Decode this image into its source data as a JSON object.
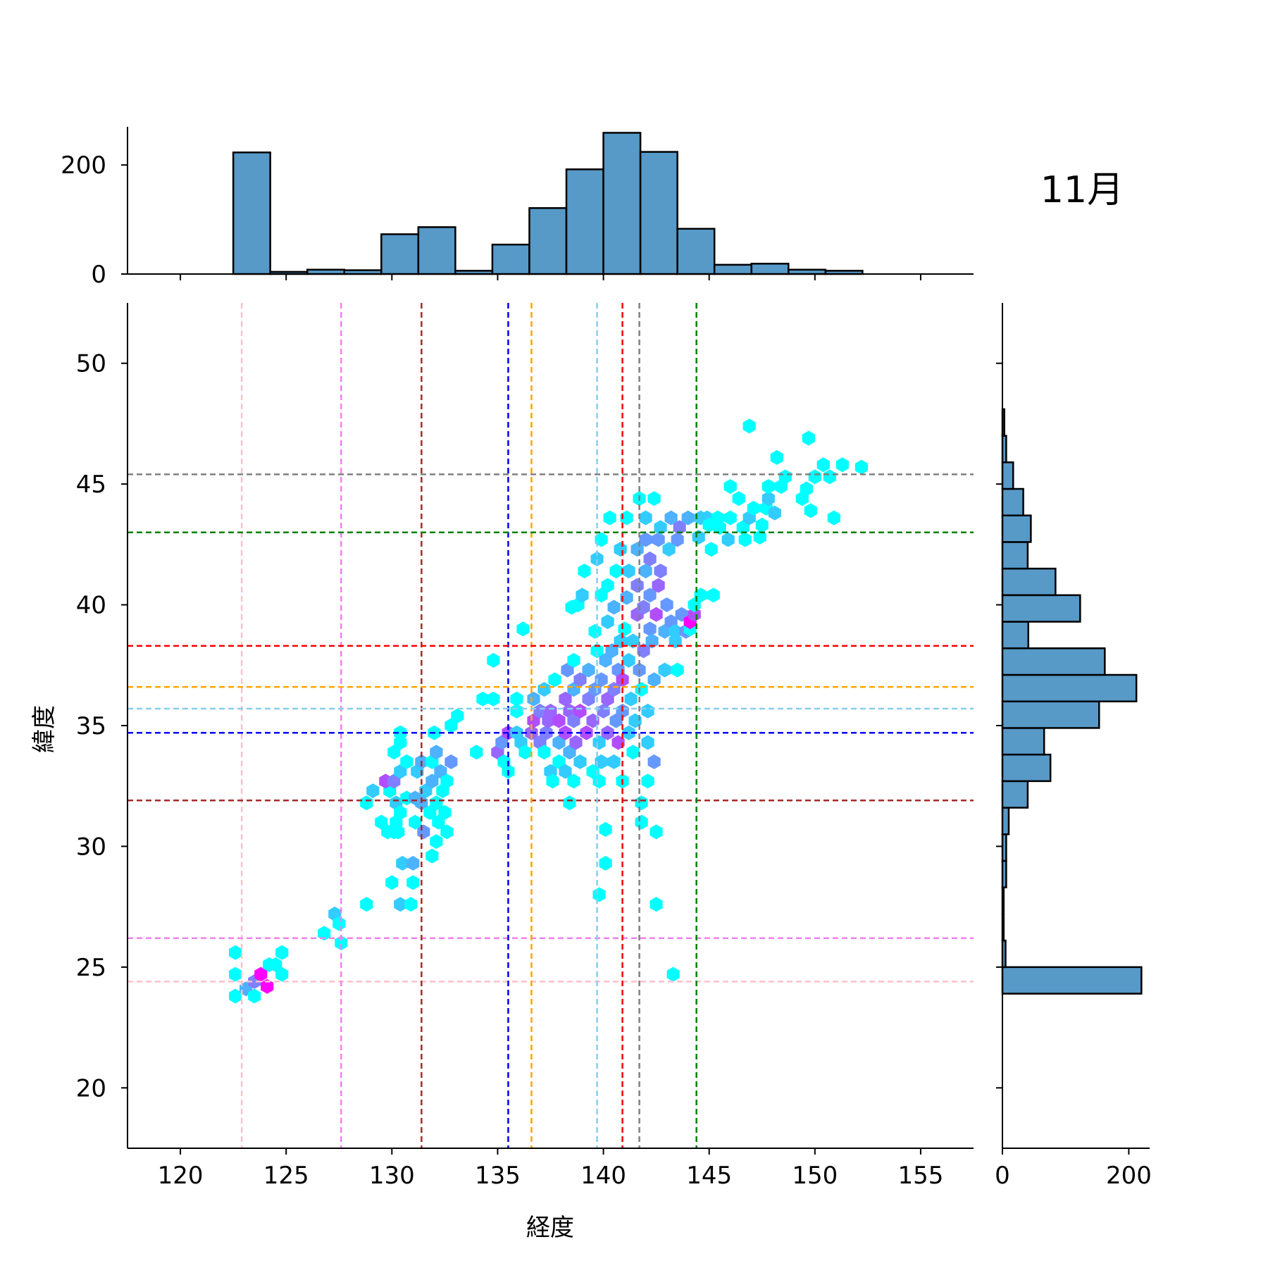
{
  "chart_data": {
    "type": "hexbin-jointplot",
    "annotation": "11月",
    "xlabel": "経度",
    "ylabel": "緯度",
    "xlim": [
      117.5,
      157.5
    ],
    "ylim": [
      17.5,
      52.5
    ],
    "x_ticks": [
      120,
      125,
      130,
      135,
      140,
      145,
      150,
      155
    ],
    "y_ticks": [
      20,
      25,
      30,
      35,
      40,
      45,
      50
    ],
    "top_hist": {
      "ylim": [
        0,
        270
      ],
      "ticks": [
        0,
        200
      ],
      "bin_width": 1.75,
      "bin_start": 122.5,
      "counts": [
        223,
        4,
        8,
        7,
        73,
        86,
        6,
        54,
        121,
        192,
        259,
        224,
        83,
        17,
        19,
        8,
        6
      ]
    },
    "right_hist": {
      "xlim": [
        0,
        233
      ],
      "ticks": [
        0,
        200
      ],
      "bin_height": 1.1,
      "bin_start": 23.9,
      "counts": [
        220,
        5,
        2,
        2,
        6,
        6,
        10,
        40,
        76,
        66,
        153,
        212,
        162,
        41,
        123,
        84,
        40,
        45,
        33,
        17,
        6,
        3
      ]
    },
    "reference_lines": [
      {
        "color": "#ffc0cb",
        "x": 122.9,
        "y": 24.4
      },
      {
        "color": "#ee82ee",
        "x": 127.6,
        "y": 26.2
      },
      {
        "color": "#a52a2a",
        "x": 131.4,
        "y": 31.9
      },
      {
        "color": "#0000ff",
        "x": 135.5,
        "y": 34.7
      },
      {
        "color": "#ffa500",
        "x": 136.6,
        "y": 36.6
      },
      {
        "color": "#87ceeb",
        "x": 139.7,
        "y": 35.7
      },
      {
        "color": "#ff0000",
        "x": 140.9,
        "y": 38.3
      },
      {
        "color": "#808080",
        "x": 141.7,
        "y": 45.4
      },
      {
        "color": "#008000",
        "x": 144.4,
        "y": 43.0
      }
    ],
    "hex_colors": [
      "#00ffff",
      "#33ccff",
      "#4db2ff",
      "#6699ff",
      "#8080ff",
      "#9966ff",
      "#b24dff",
      "#ff00ff"
    ],
    "hexbins": [
      [
        122.6,
        23.8,
        0
      ],
      [
        122.6,
        24.7,
        0
      ],
      [
        122.6,
        25.6,
        0
      ],
      [
        123.1,
        24.1,
        2
      ],
      [
        123.5,
        24.4,
        4
      ],
      [
        123.8,
        24.7,
        7
      ],
      [
        124.1,
        24.2,
        7
      ],
      [
        124.2,
        25.1,
        0
      ],
      [
        124.8,
        24.7,
        0
      ],
      [
        124.8,
        25.6,
        0
      ],
      [
        123.5,
        23.8,
        0
      ],
      [
        124.5,
        25.1,
        0
      ],
      [
        126.8,
        26.4,
        0
      ],
      [
        127.3,
        27.2,
        1
      ],
      [
        127.5,
        26.8,
        0
      ],
      [
        127.6,
        26.0,
        0
      ],
      [
        128.8,
        27.6,
        0
      ],
      [
        128.8,
        31.8,
        0
      ],
      [
        129.1,
        32.3,
        1
      ],
      [
        129.5,
        31.0,
        0
      ],
      [
        129.8,
        30.6,
        0
      ],
      [
        129.9,
        32.3,
        0
      ],
      [
        130.2,
        31.8,
        1
      ],
      [
        130.3,
        30.6,
        0
      ],
      [
        130.4,
        34.3,
        0
      ],
      [
        130.1,
        33.9,
        0
      ],
      [
        130.2,
        31.0,
        0
      ],
      [
        130.1,
        30.6,
        0
      ],
      [
        129.7,
        32.7,
        6
      ],
      [
        130.1,
        32.7,
        4
      ],
      [
        130.4,
        33.1,
        1
      ],
      [
        130.4,
        31.4,
        0
      ],
      [
        130.7,
        32.0,
        0
      ],
      [
        130.7,
        33.5,
        0
      ],
      [
        130.0,
        28.5,
        0
      ],
      [
        130.4,
        27.6,
        1
      ],
      [
        130.9,
        27.6,
        0
      ],
      [
        130.5,
        29.3,
        1
      ],
      [
        131.0,
        29.3,
        2
      ],
      [
        131.0,
        28.5,
        0
      ],
      [
        130.4,
        34.7,
        0
      ],
      [
        131.1,
        31.0,
        0
      ],
      [
        131.1,
        32.0,
        2
      ],
      [
        131.2,
        33.1,
        1
      ],
      [
        131.4,
        31.8,
        2
      ],
      [
        131.4,
        33.5,
        2
      ],
      [
        131.5,
        30.6,
        3
      ],
      [
        131.6,
        32.3,
        1
      ],
      [
        131.8,
        31.4,
        0
      ],
      [
        131.9,
        32.7,
        2
      ],
      [
        131.9,
        33.5,
        0
      ],
      [
        132.1,
        31.8,
        0
      ],
      [
        132.2,
        31.0,
        0
      ],
      [
        132.4,
        32.3,
        0
      ],
      [
        132.6,
        30.6,
        0
      ],
      [
        132.1,
        33.9,
        2
      ],
      [
        132.3,
        33.1,
        2
      ],
      [
        132.1,
        30.2,
        0
      ],
      [
        131.9,
        29.6,
        0
      ],
      [
        132.0,
        34.7,
        0
      ],
      [
        132.8,
        35.0,
        0
      ],
      [
        133.1,
        35.4,
        0
      ],
      [
        132.5,
        31.4,
        0
      ],
      [
        132.8,
        33.5,
        3
      ],
      [
        132.6,
        32.7,
        0
      ],
      [
        134.0,
        33.9,
        0
      ],
      [
        134.3,
        36.1,
        0
      ],
      [
        134.8,
        36.1,
        0
      ],
      [
        134.8,
        37.7,
        0
      ],
      [
        135.0,
        33.9,
        5
      ],
      [
        135.2,
        34.3,
        3
      ],
      [
        135.3,
        33.5,
        0
      ],
      [
        135.5,
        33.1,
        0
      ],
      [
        135.5,
        34.7,
        6
      ],
      [
        135.9,
        35.6,
        0
      ],
      [
        135.9,
        36.1,
        0
      ],
      [
        136.1,
        34.3,
        1
      ],
      [
        136.2,
        39.0,
        0
      ],
      [
        135.9,
        34.7,
        1
      ],
      [
        136.3,
        33.9,
        0
      ],
      [
        136.6,
        34.7,
        5
      ],
      [
        136.7,
        35.2,
        6
      ],
      [
        136.7,
        36.1,
        2
      ],
      [
        137.0,
        34.3,
        4
      ],
      [
        137.0,
        35.6,
        4
      ],
      [
        137.2,
        36.5,
        1
      ],
      [
        137.3,
        34.7,
        4
      ],
      [
        137.4,
        35.2,
        5
      ],
      [
        137.2,
        33.9,
        0
      ],
      [
        137.5,
        33.1,
        1
      ],
      [
        137.5,
        35.6,
        5
      ],
      [
        137.7,
        36.9,
        0
      ],
      [
        137.9,
        34.3,
        2
      ],
      [
        137.9,
        35.2,
        6
      ],
      [
        137.6,
        32.7,
        0
      ],
      [
        137.9,
        33.5,
        0
      ],
      [
        138.2,
        33.1,
        1
      ],
      [
        138.2,
        34.7,
        6
      ],
      [
        138.2,
        36.1,
        5
      ],
      [
        138.4,
        35.6,
        5
      ],
      [
        138.6,
        32.7,
        0
      ],
      [
        138.4,
        33.9,
        2
      ],
      [
        138.3,
        37.3,
        3
      ],
      [
        138.4,
        31.8,
        0
      ],
      [
        138.6,
        35.2,
        4
      ],
      [
        138.7,
        34.3,
        5
      ],
      [
        138.6,
        36.5,
        2
      ],
      [
        138.6,
        37.7,
        0
      ],
      [
        138.8,
        40.0,
        0
      ],
      [
        138.5,
        39.9,
        0
      ],
      [
        138.9,
        33.5,
        1
      ],
      [
        138.9,
        35.6,
        6
      ],
      [
        138.9,
        36.9,
        4
      ],
      [
        139.0,
        40.4,
        1
      ],
      [
        139.1,
        41.4,
        0
      ],
      [
        139.2,
        34.7,
        6
      ],
      [
        139.3,
        36.1,
        4
      ],
      [
        139.3,
        37.3,
        2
      ],
      [
        139.5,
        33.1,
        0
      ],
      [
        139.5,
        35.2,
        5
      ],
      [
        139.6,
        36.5,
        3
      ],
      [
        139.6,
        38.9,
        0
      ],
      [
        139.7,
        41.9,
        1
      ],
      [
        139.7,
        38.1,
        0
      ],
      [
        139.8,
        34.3,
        1
      ],
      [
        139.8,
        32.7,
        0
      ],
      [
        139.9,
        33.5,
        1
      ],
      [
        139.9,
        36.9,
        3
      ],
      [
        139.9,
        40.4,
        0
      ],
      [
        139.9,
        42.7,
        0
      ],
      [
        140.0,
        35.6,
        4
      ],
      [
        140.1,
        37.7,
        2
      ],
      [
        140.1,
        30.7,
        0
      ],
      [
        140.1,
        29.3,
        0
      ],
      [
        139.8,
        28.0,
        0
      ],
      [
        140.2,
        34.7,
        5
      ],
      [
        140.2,
        36.1,
        5
      ],
      [
        140.2,
        39.3,
        1
      ],
      [
        140.2,
        40.8,
        0
      ],
      [
        140.3,
        43.6,
        0
      ],
      [
        140.4,
        38.1,
        2
      ],
      [
        140.5,
        33.5,
        1
      ],
      [
        140.5,
        36.5,
        4
      ],
      [
        140.5,
        39.9,
        2
      ],
      [
        140.6,
        41.4,
        0
      ],
      [
        140.6,
        35.2,
        3
      ],
      [
        140.7,
        37.3,
        3
      ],
      [
        140.7,
        34.3,
        6
      ],
      [
        140.8,
        38.5,
        1
      ],
      [
        140.8,
        42.3,
        1
      ],
      [
        140.9,
        32.7,
        0
      ],
      [
        140.9,
        35.6,
        3
      ],
      [
        140.9,
        36.9,
        6
      ],
      [
        141.0,
        39.0,
        0
      ],
      [
        141.1,
        40.3,
        2
      ],
      [
        141.1,
        43.6,
        0
      ],
      [
        141.2,
        34.7,
        1
      ],
      [
        141.2,
        37.7,
        1
      ],
      [
        141.2,
        41.4,
        1
      ],
      [
        141.3,
        36.1,
        1
      ],
      [
        141.4,
        38.5,
        1
      ],
      [
        141.4,
        33.9,
        0
      ],
      [
        141.5,
        35.2,
        1
      ],
      [
        141.6,
        39.6,
        5
      ],
      [
        141.6,
        40.8,
        4
      ],
      [
        141.6,
        42.3,
        2
      ],
      [
        141.7,
        44.4,
        0
      ],
      [
        141.7,
        37.3,
        3
      ],
      [
        141.8,
        36.5,
        0
      ],
      [
        141.8,
        31.8,
        0
      ],
      [
        141.8,
        31.0,
        0
      ],
      [
        141.9,
        38.1,
        4
      ],
      [
        141.9,
        39.9,
        4
      ],
      [
        142.0,
        41.4,
        2
      ],
      [
        142.0,
        42.7,
        3
      ],
      [
        142.0,
        43.6,
        1
      ],
      [
        142.1,
        35.6,
        1
      ],
      [
        142.1,
        34.3,
        1
      ],
      [
        142.1,
        32.7,
        0
      ],
      [
        142.2,
        39.0,
        3
      ],
      [
        142.2,
        40.4,
        3
      ],
      [
        142.2,
        41.9,
        4
      ],
      [
        142.3,
        38.5,
        2
      ],
      [
        142.4,
        44.4,
        0
      ],
      [
        142.4,
        36.9,
        2
      ],
      [
        142.4,
        33.5,
        3
      ],
      [
        142.5,
        30.6,
        0
      ],
      [
        142.5,
        27.6,
        0
      ],
      [
        142.5,
        39.6,
        6
      ],
      [
        142.6,
        40.8,
        5
      ],
      [
        142.6,
        42.7,
        3
      ],
      [
        142.7,
        43.2,
        1
      ],
      [
        142.7,
        41.4,
        4
      ],
      [
        142.9,
        37.3,
        1
      ],
      [
        142.9,
        38.9,
        2
      ],
      [
        143.0,
        40.0,
        3
      ],
      [
        143.1,
        42.3,
        1
      ],
      [
        143.2,
        43.6,
        2
      ],
      [
        143.2,
        39.3,
        3
      ],
      [
        143.4,
        38.9,
        1
      ],
      [
        143.4,
        38.5,
        1
      ],
      [
        143.5,
        37.3,
        0
      ],
      [
        143.5,
        42.7,
        3
      ],
      [
        143.6,
        43.2,
        4
      ],
      [
        143.7,
        39.6,
        3
      ],
      [
        143.9,
        38.9,
        3
      ],
      [
        144.0,
        43.6,
        2
      ],
      [
        144.1,
        39.0,
        0
      ],
      [
        144.1,
        39.3,
        7
      ],
      [
        144.3,
        39.6,
        6
      ],
      [
        144.5,
        42.8,
        1
      ],
      [
        144.6,
        43.6,
        1
      ],
      [
        144.3,
        40.0,
        0
      ],
      [
        144.6,
        40.4,
        0
      ],
      [
        144.9,
        43.6,
        1
      ],
      [
        145.0,
        43.3,
        0
      ],
      [
        145.2,
        40.4,
        0
      ],
      [
        145.4,
        43.6,
        0
      ],
      [
        145.5,
        43.2,
        0
      ],
      [
        143.3,
        24.7,
        0
      ],
      [
        145.1,
        42.3,
        0
      ],
      [
        145.9,
        42.7,
        1
      ],
      [
        146.0,
        43.6,
        0
      ],
      [
        146.0,
        44.9,
        0
      ],
      [
        146.4,
        44.4,
        0
      ],
      [
        146.6,
        43.2,
        0
      ],
      [
        146.7,
        42.7,
        0
      ],
      [
        146.9,
        43.6,
        1
      ],
      [
        146.9,
        47.4,
        0
      ],
      [
        147.1,
        44.0,
        0
      ],
      [
        147.4,
        42.8,
        0
      ],
      [
        147.5,
        43.3,
        0
      ],
      [
        147.7,
        44.0,
        0
      ],
      [
        147.8,
        44.4,
        1
      ],
      [
        147.8,
        44.9,
        0
      ],
      [
        148.1,
        43.8,
        1
      ],
      [
        148.2,
        46.1,
        0
      ],
      [
        148.4,
        44.9,
        0
      ],
      [
        148.6,
        45.3,
        0
      ],
      [
        149.4,
        44.4,
        0
      ],
      [
        149.6,
        44.8,
        0
      ],
      [
        149.7,
        46.9,
        0
      ],
      [
        149.8,
        43.9,
        0
      ],
      [
        150.0,
        45.3,
        0
      ],
      [
        150.4,
        45.8,
        0
      ],
      [
        150.7,
        45.3,
        0
      ],
      [
        150.9,
        43.6,
        0
      ],
      [
        151.3,
        45.8,
        0
      ],
      [
        152.2,
        45.7,
        0
      ]
    ]
  }
}
